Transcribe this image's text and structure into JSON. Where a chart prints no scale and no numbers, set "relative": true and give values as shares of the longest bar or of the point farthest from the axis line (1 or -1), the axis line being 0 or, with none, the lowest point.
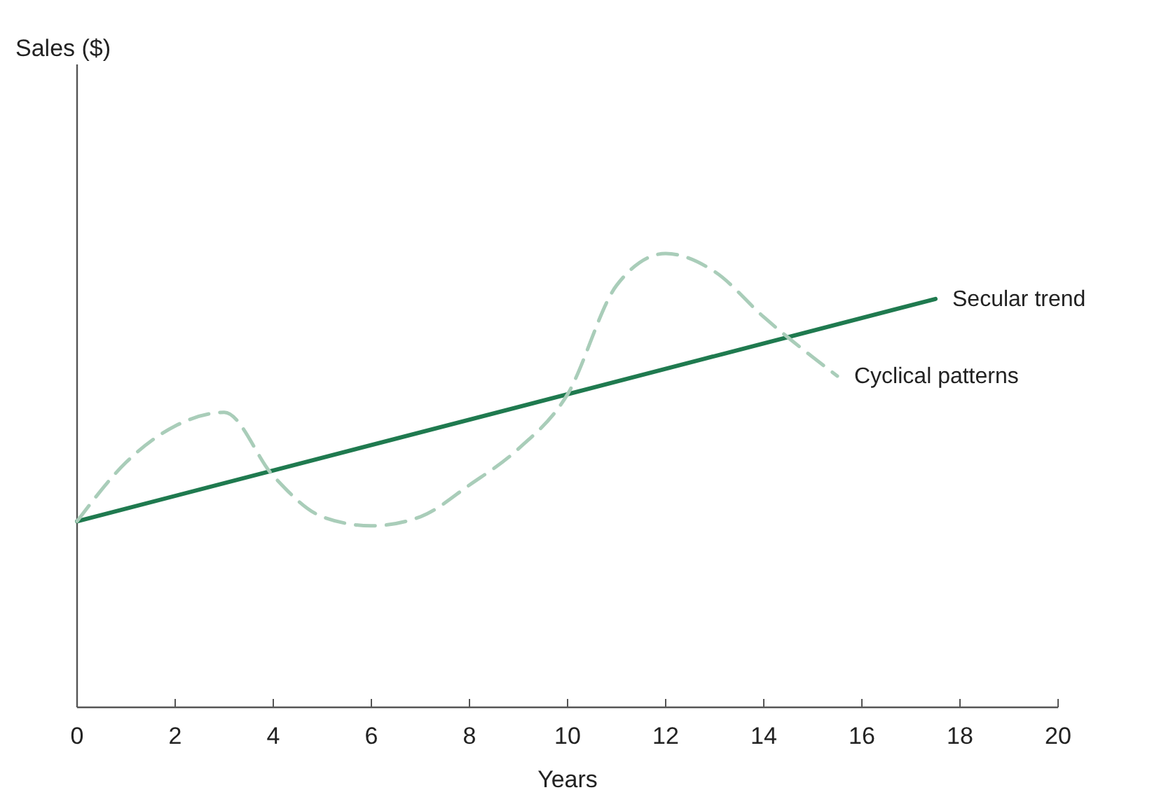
{
  "chart_data": {
    "type": "line",
    "relative": true,
    "annotations": [
      "Sales ($)"
    ],
    "xlabel": "Years",
    "xlim": [
      0,
      20
    ],
    "xticks": [
      0,
      2,
      4,
      6,
      8,
      10,
      12,
      14,
      16,
      18,
      20
    ],
    "marker": "none",
    "grid": false,
    "series": [
      {
        "name": "Secular trend",
        "color": "#1f7a4f",
        "line_style": "solid",
        "x": [
          0,
          17.5
        ],
        "values": [
          0.41,
          0.9
        ]
      },
      {
        "name": "Cyclical patterns",
        "color": "#a9cdb9",
        "line_style": "dashed",
        "x": [
          0,
          1,
          2,
          3,
          4,
          5,
          6,
          7,
          8,
          9,
          10,
          11,
          12,
          13,
          14,
          15.5
        ],
        "values": [
          0.41,
          0.54,
          0.62,
          0.65,
          0.51,
          0.42,
          0.4,
          0.42,
          0.49,
          0.57,
          0.69,
          0.93,
          1,
          0.96,
          0.86,
          0.73
        ]
      }
    ]
  }
}
